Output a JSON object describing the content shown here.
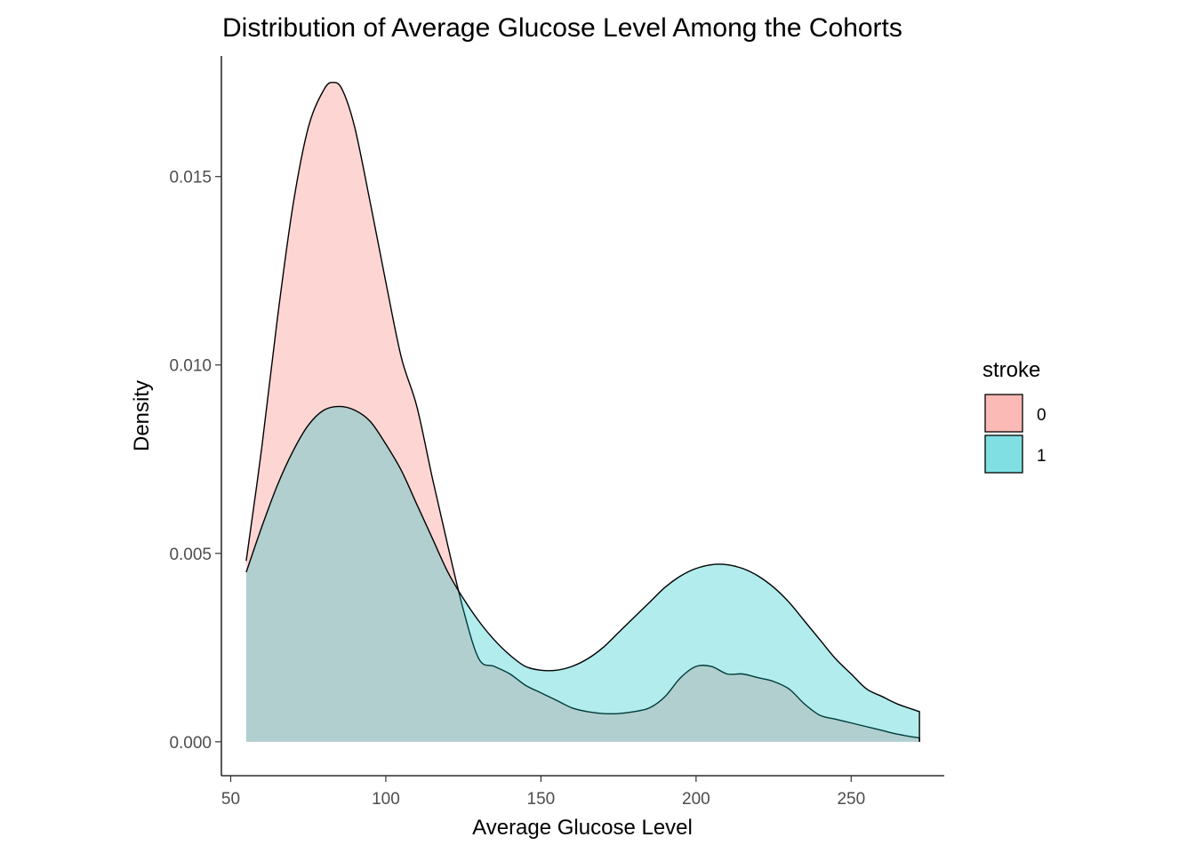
{
  "chart_data": {
    "type": "area",
    "title": "Distribution of Average Glucose Level Among the Cohorts",
    "xlabel": "Average Glucose Level",
    "ylabel": "Density",
    "xlim": [
      47,
      280
    ],
    "ylim": [
      -0.0009,
      0.0182
    ],
    "x_ticks": [
      50,
      100,
      150,
      200,
      250
    ],
    "x_tick_labels": [
      "50",
      "100",
      "150",
      "200",
      "250"
    ],
    "y_ticks": [
      0,
      0.005,
      0.01,
      0.015
    ],
    "y_tick_labels": [
      "0.000",
      "0.005",
      "0.010",
      "0.015"
    ],
    "grid": false,
    "legend": {
      "title": "stroke",
      "position": "right"
    },
    "series": [
      {
        "name": "0",
        "color": "#F8766D",
        "points": [
          [
            55,
            0.0048
          ],
          [
            60,
            0.0078
          ],
          [
            65,
            0.0112
          ],
          [
            70,
            0.0142
          ],
          [
            75,
            0.0163
          ],
          [
            80,
            0.0173
          ],
          [
            83,
            0.0175
          ],
          [
            86,
            0.0173
          ],
          [
            90,
            0.0163
          ],
          [
            95,
            0.0143
          ],
          [
            100,
            0.0122
          ],
          [
            105,
            0.0102
          ],
          [
            110,
            0.0089
          ],
          [
            115,
            0.007
          ],
          [
            120,
            0.0052
          ],
          [
            125,
            0.0035
          ],
          [
            130,
            0.0022
          ],
          [
            135,
            0.002
          ],
          [
            140,
            0.0018
          ],
          [
            145,
            0.0015
          ],
          [
            150,
            0.0013
          ],
          [
            155,
            0.0011
          ],
          [
            160,
            0.0009
          ],
          [
            165,
            0.0008
          ],
          [
            170,
            0.00075
          ],
          [
            175,
            0.00075
          ],
          [
            180,
            0.0008
          ],
          [
            185,
            0.0009
          ],
          [
            190,
            0.0012
          ],
          [
            195,
            0.0017
          ],
          [
            200,
            0.002
          ],
          [
            205,
            0.002
          ],
          [
            210,
            0.0018
          ],
          [
            215,
            0.0018
          ],
          [
            220,
            0.0017
          ],
          [
            225,
            0.0016
          ],
          [
            230,
            0.0014
          ],
          [
            235,
            0.001
          ],
          [
            240,
            0.0007
          ],
          [
            245,
            0.0006
          ],
          [
            250,
            0.0005
          ],
          [
            255,
            0.0004
          ],
          [
            260,
            0.0003
          ],
          [
            265,
            0.0002
          ],
          [
            272,
            0.0001
          ]
        ]
      },
      {
        "name": "1",
        "color": "#00BFC4",
        "points": [
          [
            55,
            0.0045
          ],
          [
            60,
            0.0057
          ],
          [
            65,
            0.0068
          ],
          [
            70,
            0.0077
          ],
          [
            75,
            0.0084
          ],
          [
            80,
            0.0088
          ],
          [
            85,
            0.0089
          ],
          [
            90,
            0.0088
          ],
          [
            95,
            0.0085
          ],
          [
            100,
            0.0079
          ],
          [
            105,
            0.0072
          ],
          [
            110,
            0.0063
          ],
          [
            115,
            0.0054
          ],
          [
            120,
            0.0045
          ],
          [
            125,
            0.0038
          ],
          [
            130,
            0.0032
          ],
          [
            135,
            0.0027
          ],
          [
            140,
            0.0023
          ],
          [
            145,
            0.002
          ],
          [
            150,
            0.0019
          ],
          [
            155,
            0.0019
          ],
          [
            160,
            0.002
          ],
          [
            165,
            0.0022
          ],
          [
            170,
            0.0025
          ],
          [
            175,
            0.0029
          ],
          [
            180,
            0.0033
          ],
          [
            185,
            0.0037
          ],
          [
            190,
            0.0041
          ],
          [
            195,
            0.0044
          ],
          [
            200,
            0.0046
          ],
          [
            205,
            0.0047
          ],
          [
            210,
            0.0047
          ],
          [
            215,
            0.0046
          ],
          [
            220,
            0.0044
          ],
          [
            225,
            0.0041
          ],
          [
            230,
            0.0037
          ],
          [
            235,
            0.0032
          ],
          [
            240,
            0.0027
          ],
          [
            245,
            0.0022
          ],
          [
            250,
            0.0018
          ],
          [
            255,
            0.0014
          ],
          [
            260,
            0.0012
          ],
          [
            265,
            0.001
          ],
          [
            272,
            0.0008
          ]
        ]
      }
    ]
  }
}
